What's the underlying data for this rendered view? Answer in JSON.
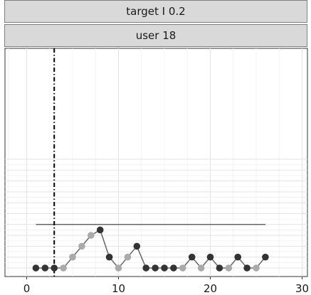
{
  "facets": {
    "top": "target I 0.2",
    "bottom": "user 18"
  },
  "chart_data": {
    "type": "line",
    "title": "",
    "xlabel": "",
    "ylabel": "",
    "xlim": [
      -2,
      31.5
    ],
    "ylim": [
      0,
      10
    ],
    "x_ticks": [
      "0",
      "10",
      "20",
      "30"
    ],
    "grid": true,
    "series": [
      {
        "x": [
          1,
          2,
          3,
          4,
          5,
          6,
          7,
          8,
          9,
          10,
          11,
          12,
          13,
          14,
          15,
          16,
          17,
          18,
          19,
          20,
          21,
          22,
          23,
          24,
          25,
          26
        ],
        "values": [
          0,
          0,
          0,
          0,
          1,
          2,
          3,
          3.5,
          1,
          0,
          1,
          2,
          0,
          0,
          0,
          0,
          0,
          1,
          0,
          1,
          0,
          0,
          1,
          0,
          0,
          1
        ],
        "color": "#666666"
      }
    ],
    "point_colors": {
      "dark": "#333333",
      "light": "#aaaaaa"
    },
    "point_types": [
      "dark",
      "dark",
      "dark",
      "light",
      "light",
      "light",
      "light",
      "dark",
      "dark",
      "light",
      "light",
      "dark",
      "dark",
      "dark",
      "dark",
      "dark",
      "light",
      "dark",
      "light",
      "dark",
      "dark",
      "light",
      "dark",
      "dark",
      "light",
      "dark"
    ],
    "reference_line": {
      "y": 4,
      "x_start": 1,
      "x_end": 26,
      "color": "#666666"
    },
    "vertical_line": {
      "x": 3,
      "style": "dash-dot",
      "color": "#000000"
    }
  }
}
